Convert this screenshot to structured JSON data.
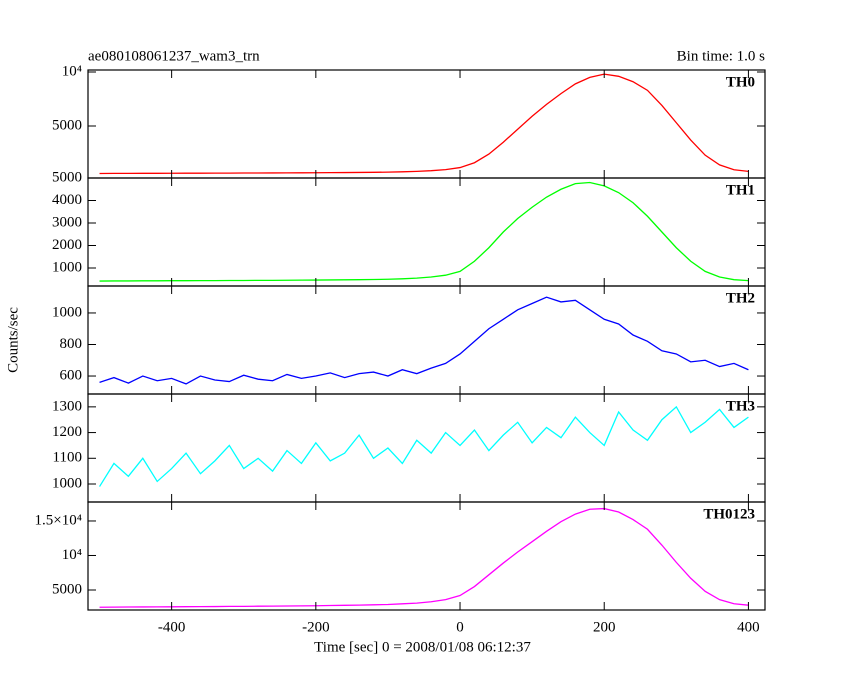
{
  "chart_data": [
    {
      "type": "line",
      "title": "ae080108061237_wam3_trn",
      "subtitle": "Bin time: 1.0 s",
      "x": [
        -500,
        -480,
        -460,
        -440,
        -420,
        -400,
        -380,
        -360,
        -340,
        -320,
        -300,
        -280,
        -260,
        -240,
        -220,
        -200,
        -180,
        -160,
        -140,
        -120,
        -100,
        -80,
        -60,
        -40,
        -20,
        0,
        20,
        40,
        60,
        80,
        100,
        120,
        140,
        160,
        180,
        200,
        220,
        240,
        260,
        280,
        300,
        320,
        340,
        360,
        380,
        400
      ],
      "xlim": [
        -516,
        423
      ],
      "xticks": [
        -400,
        -200,
        0,
        200,
        400
      ],
      "ylim": [
        185,
        10185
      ],
      "yticks": [
        5000,
        {
          "value": 10000,
          "label": "10⁴"
        }
      ],
      "series": [
        {
          "name": "TH0",
          "color": "#ff0000",
          "values": [
            600,
            610,
            615,
            620,
            620,
            625,
            630,
            630,
            635,
            640,
            645,
            650,
            655,
            660,
            665,
            670,
            680,
            690,
            700,
            710,
            730,
            760,
            800,
            860,
            960,
            1150,
            1600,
            2400,
            3500,
            4700,
            5900,
            7000,
            8000,
            8900,
            9500,
            9800,
            9600,
            9100,
            8300,
            6900,
            5300,
            3700,
            2300,
            1400,
            950,
            800
          ]
        }
      ]
    },
    {
      "type": "line",
      "x": [
        -500,
        -480,
        -460,
        -440,
        -420,
        -400,
        -380,
        -360,
        -340,
        -320,
        -300,
        -280,
        -260,
        -240,
        -220,
        -200,
        -180,
        -160,
        -140,
        -120,
        -100,
        -80,
        -60,
        -40,
        -20,
        0,
        20,
        40,
        60,
        80,
        100,
        120,
        140,
        160,
        180,
        200,
        220,
        240,
        260,
        280,
        300,
        320,
        340,
        360,
        380,
        400
      ],
      "xlim": [
        -516,
        423
      ],
      "xticks": [
        -400,
        -200,
        0,
        200,
        400
      ],
      "ylim": [
        200,
        5000
      ],
      "yticks": [
        1000,
        2000,
        3000,
        4000,
        5000
      ],
      "series": [
        {
          "name": "TH1",
          "color": "#00ff00",
          "values": [
            420,
            425,
            425,
            430,
            430,
            435,
            435,
            440,
            440,
            445,
            445,
            450,
            450,
            455,
            460,
            465,
            470,
            475,
            480,
            490,
            500,
            520,
            550,
            600,
            680,
            850,
            1300,
            1900,
            2600,
            3200,
            3700,
            4150,
            4500,
            4750,
            4800,
            4650,
            4350,
            3900,
            3300,
            2600,
            1900,
            1300,
            850,
            600,
            480,
            440
          ]
        }
      ]
    },
    {
      "type": "line",
      "ylabel": "Counts/sec",
      "x": [
        -500,
        -480,
        -460,
        -440,
        -420,
        -400,
        -380,
        -360,
        -340,
        -320,
        -300,
        -280,
        -260,
        -240,
        -220,
        -200,
        -180,
        -160,
        -140,
        -120,
        -100,
        -80,
        -60,
        -40,
        -20,
        0,
        20,
        40,
        60,
        80,
        100,
        120,
        140,
        160,
        180,
        200,
        220,
        240,
        260,
        280,
        300,
        320,
        340,
        360,
        380,
        400
      ],
      "xlim": [
        -516,
        423
      ],
      "xticks": [
        -400,
        -200,
        0,
        200,
        400
      ],
      "ylim": [
        486,
        1171
      ],
      "yticks": [
        600,
        800,
        1000
      ],
      "series": [
        {
          "name": "TH2",
          "color": "#0000ff",
          "values": [
            560,
            590,
            555,
            600,
            570,
            585,
            550,
            600,
            575,
            565,
            605,
            580,
            570,
            610,
            585,
            600,
            620,
            590,
            615,
            625,
            600,
            640,
            615,
            650,
            680,
            740,
            820,
            900,
            960,
            1020,
            1060,
            1100,
            1070,
            1080,
            1020,
            960,
            930,
            860,
            820,
            760,
            740,
            690,
            700,
            660,
            680,
            640
          ]
        }
      ]
    },
    {
      "type": "line",
      "x": [
        -500,
        -480,
        -460,
        -440,
        -420,
        -400,
        -380,
        -360,
        -340,
        -320,
        -300,
        -280,
        -260,
        -240,
        -220,
        -200,
        -180,
        -160,
        -140,
        -120,
        -100,
        -80,
        -60,
        -40,
        -20,
        0,
        20,
        40,
        60,
        80,
        100,
        120,
        140,
        160,
        180,
        200,
        220,
        240,
        260,
        280,
        300,
        320,
        340,
        360,
        380,
        400
      ],
      "xlim": [
        -516,
        423
      ],
      "xticks": [
        -400,
        -200,
        0,
        200,
        400
      ],
      "ylim": [
        930,
        1350
      ],
      "yticks": [
        1000,
        1100,
        1200,
        1300
      ],
      "series": [
        {
          "name": "TH3",
          "color": "#00ffff",
          "values": [
            990,
            1080,
            1030,
            1100,
            1010,
            1060,
            1120,
            1040,
            1090,
            1150,
            1060,
            1100,
            1050,
            1130,
            1080,
            1160,
            1090,
            1120,
            1190,
            1100,
            1140,
            1080,
            1170,
            1120,
            1200,
            1150,
            1210,
            1130,
            1190,
            1240,
            1160,
            1220,
            1180,
            1260,
            1200,
            1150,
            1280,
            1210,
            1170,
            1250,
            1300,
            1200,
            1240,
            1290,
            1220,
            1260
          ]
        }
      ]
    },
    {
      "type": "line",
      "xlabel": "Time [sec] 0 = 2008/01/08 06:12:37",
      "x": [
        -500,
        -480,
        -460,
        -440,
        -420,
        -400,
        -380,
        -360,
        -340,
        -320,
        -300,
        -280,
        -260,
        -240,
        -220,
        -200,
        -180,
        -160,
        -140,
        -120,
        -100,
        -80,
        -60,
        -40,
        -20,
        0,
        20,
        40,
        60,
        80,
        100,
        120,
        140,
        160,
        180,
        200,
        220,
        240,
        260,
        280,
        300,
        320,
        340,
        360,
        380,
        400
      ],
      "xlim": [
        -516,
        423
      ],
      "xticks": [
        -400,
        -200,
        0,
        200,
        400
      ],
      "ylim": [
        2100,
        17750
      ],
      "yticks": [
        5000,
        {
          "value": 10000,
          "label": "10⁴"
        },
        {
          "value": 15000,
          "label": "1.5×10⁴"
        }
      ],
      "series": [
        {
          "name": "TH0123",
          "color": "#ff00ff",
          "values": [
            2500,
            2520,
            2530,
            2540,
            2550,
            2560,
            2580,
            2590,
            2600,
            2620,
            2630,
            2650,
            2660,
            2680,
            2700,
            2720,
            2750,
            2780,
            2810,
            2850,
            2900,
            3000,
            3100,
            3300,
            3600,
            4200,
            5500,
            7200,
            8900,
            10500,
            12000,
            13500,
            14900,
            16000,
            16700,
            16800,
            16300,
            15200,
            13800,
            11500,
            9000,
            6700,
            4800,
            3600,
            3000,
            2800
          ]
        }
      ]
    }
  ]
}
